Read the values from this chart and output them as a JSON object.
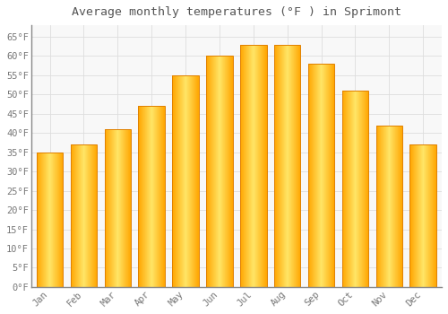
{
  "title": "Average monthly temperatures (°F ) in Sprimont",
  "months": [
    "Jan",
    "Feb",
    "Mar",
    "Apr",
    "May",
    "Jun",
    "Jul",
    "Aug",
    "Sep",
    "Oct",
    "Nov",
    "Dec"
  ],
  "values": [
    35,
    37,
    41,
    47,
    55,
    60,
    63,
    63,
    58,
    51,
    42,
    37
  ],
  "bar_color_face": "#FFA500",
  "bar_color_light": "#FFD966",
  "bar_edge_color": "#E08000",
  "background_color": "#FFFFFF",
  "plot_bg_color": "#F8F8F8",
  "grid_color": "#DDDDDD",
  "ylim": [
    0,
    68
  ],
  "yticks": [
    0,
    5,
    10,
    15,
    20,
    25,
    30,
    35,
    40,
    45,
    50,
    55,
    60,
    65
  ],
  "ytick_labels": [
    "0°F",
    "5°F",
    "10°F",
    "15°F",
    "20°F",
    "25°F",
    "30°F",
    "35°F",
    "40°F",
    "45°F",
    "50°F",
    "55°F",
    "60°F",
    "65°F"
  ],
  "title_fontsize": 9.5,
  "tick_fontsize": 7.5,
  "figsize": [
    5.0,
    3.5
  ],
  "dpi": 100,
  "bar_width": 0.78
}
